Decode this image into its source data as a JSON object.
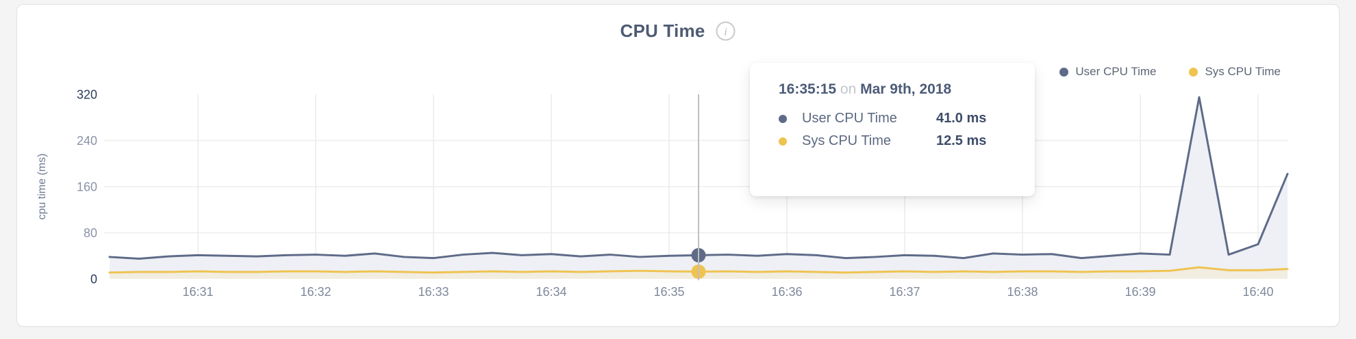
{
  "header": {
    "title": "CPU Time",
    "info_glyph": "i"
  },
  "legend": {
    "items": [
      {
        "label": "User CPU Time",
        "color": "#5e6b88"
      },
      {
        "label": "Sys CPU Time",
        "color": "#efc350"
      }
    ]
  },
  "tooltip": {
    "time": "16:35:15",
    "connector": "on",
    "date": "Mar 9th, 2018",
    "rows": [
      {
        "label": "User CPU Time",
        "value": "41.0 ms",
        "color": "#5e6b88"
      },
      {
        "label": "Sys CPU Time",
        "value": "12.5 ms",
        "color": "#efc350"
      }
    ]
  },
  "chart_data": {
    "type": "area",
    "title": "CPU Time",
    "ylabel": "cpu time (ms)",
    "ylim": [
      0,
      320
    ],
    "yticks": [
      0,
      80,
      160,
      240,
      320
    ],
    "grid": true,
    "legend_position": "top-right",
    "x_interval_seconds": 15,
    "x_times": [
      "16:30:15",
      "16:30:30",
      "16:30:45",
      "16:31:00",
      "16:31:15",
      "16:31:30",
      "16:31:45",
      "16:32:00",
      "16:32:15",
      "16:32:30",
      "16:32:45",
      "16:33:00",
      "16:33:15",
      "16:33:30",
      "16:33:45",
      "16:34:00",
      "16:34:15",
      "16:34:30",
      "16:34:45",
      "16:35:00",
      "16:35:15",
      "16:35:30",
      "16:35:45",
      "16:36:00",
      "16:36:15",
      "16:36:30",
      "16:36:45",
      "16:37:00",
      "16:37:15",
      "16:37:30",
      "16:37:45",
      "16:38:00",
      "16:38:15",
      "16:38:30",
      "16:38:45",
      "16:39:00",
      "16:39:15",
      "16:39:30",
      "16:39:45",
      "16:40:00",
      "16:40:15"
    ],
    "x_ticks": [
      {
        "index": 3,
        "label": "16:31"
      },
      {
        "index": 7,
        "label": "16:32"
      },
      {
        "index": 11,
        "label": "16:33"
      },
      {
        "index": 15,
        "label": "16:34"
      },
      {
        "index": 19,
        "label": "16:35"
      },
      {
        "index": 23,
        "label": "16:36"
      },
      {
        "index": 27,
        "label": "16:37"
      },
      {
        "index": 31,
        "label": "16:38"
      },
      {
        "index": 35,
        "label": "16:39"
      },
      {
        "index": 39,
        "label": "16:40"
      }
    ],
    "series": [
      {
        "name": "User CPU Time",
        "color": "#5e6b88",
        "fill": "#eef0f5",
        "values": [
          38,
          35,
          39,
          41,
          40,
          39,
          41,
          42,
          40,
          44,
          38,
          36,
          42,
          45,
          41,
          43,
          39,
          42,
          38,
          40,
          41,
          42,
          40,
          43,
          41,
          36,
          38,
          41,
          40,
          36,
          44,
          42,
          43,
          36,
          40,
          44,
          42,
          315,
          42,
          60,
          182
        ]
      },
      {
        "name": "Sys CPU Time",
        "color": "#efc350",
        "fill": "#f1ede1",
        "values": [
          11,
          12,
          12,
          13,
          12,
          12,
          13,
          13,
          12,
          13,
          12,
          11,
          12,
          13,
          12,
          13,
          12,
          13,
          14,
          13,
          12.5,
          13,
          12,
          13,
          12,
          11,
          12,
          13,
          12,
          13,
          12,
          13,
          13,
          12,
          13,
          13,
          14,
          20,
          15,
          15,
          17
        ]
      }
    ],
    "hover_index": 20,
    "hover_values": {
      "user_ms": 41.0,
      "sys_ms": 12.5
    }
  }
}
